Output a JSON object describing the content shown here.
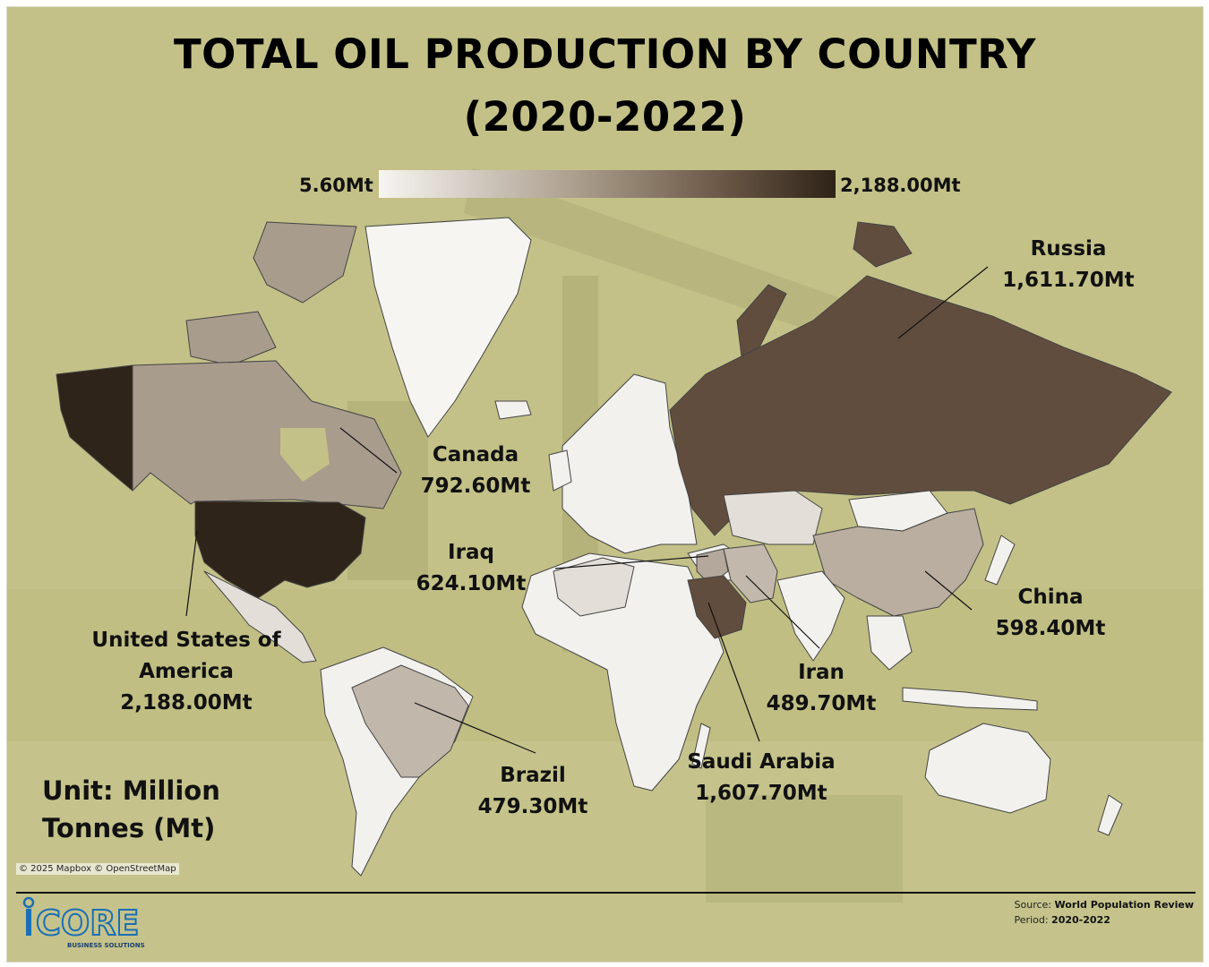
{
  "title_line1": "TOTAL OIL PRODUCTION BY COUNTRY",
  "title_line2": "(2020-2022)",
  "legend": {
    "min_label": "5.60Mt",
    "max_label": "2,188.00Mt",
    "min_color": "#f7f5f2",
    "max_color": "#2e2318"
  },
  "countries": [
    {
      "name": "Russia",
      "value": "1,611.70Mt",
      "color": "#614d3e"
    },
    {
      "name": "Canada",
      "value": "792.60Mt",
      "color": "#a89c8d"
    },
    {
      "name_line1": "United States of",
      "name_line2": "America",
      "value": "2,188.00Mt",
      "color": "#2f2419"
    },
    {
      "name": "Iraq",
      "value": "624.10Mt",
      "color": "#b3a89b"
    },
    {
      "name": "China",
      "value": "598.40Mt",
      "color": "#b9ae9f"
    },
    {
      "name": "Iran",
      "value": "489.70Mt",
      "color": "#c2b8ab"
    },
    {
      "name": "Brazil",
      "value": "479.30Mt",
      "color": "#c1b7aa"
    },
    {
      "name": "Saudi Arabia",
      "value": "1,607.70Mt",
      "color": "#614d3e"
    }
  ],
  "unit_line1": "Unit: Million",
  "unit_line2": "Tonnes (Mt)",
  "attribution": "© 2025 Mapbox © OpenStreetMap",
  "source_label": "Source:",
  "source_value": "World Population Review",
  "period_label": "Period:",
  "period_value": "2020-2022",
  "logo_text": "CORE",
  "logo_sub": "BUSINESS SOLUTIONS",
  "colors": {
    "background": "#c3c187",
    "default_country": "#f2f1ee",
    "greenland": "#f6f5f2",
    "low_country": "#e3ded8"
  }
}
